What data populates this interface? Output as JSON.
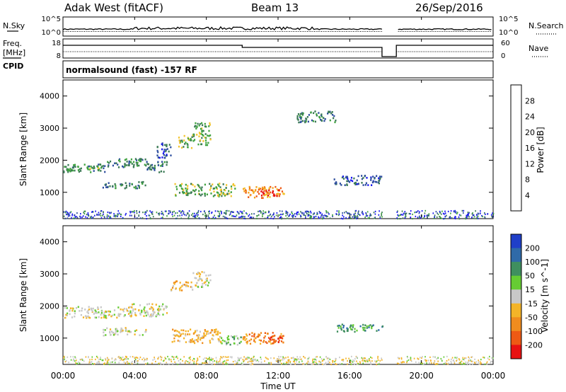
{
  "header": {
    "title": "Adak West (fitACF)",
    "beam": "Beam 13",
    "date": "26/Sep/2016"
  },
  "noise_panel": {
    "left_label": "N.Sky",
    "right_label": "N.Search",
    "left_ticks": [
      "10^5",
      "10^0"
    ],
    "right_ticks": [
      "10^5",
      "10^0"
    ]
  },
  "freq_panel": {
    "left_label_1": "Freq.",
    "left_label_2": "[MHz]",
    "cpid_label": "CPID",
    "right_label": "Nave",
    "left_ticks": [
      "18",
      "8"
    ],
    "right_ticks": [
      "60",
      "0"
    ]
  },
  "cpid_text": "normalsound (fast) -157 RF",
  "axes": {
    "ylabel": "Slant Range [km]",
    "xlabel": "Time UT",
    "y_ticks": [
      "1000",
      "2000",
      "3000",
      "4000"
    ],
    "x_ticks": [
      "00:00",
      "04:00",
      "08:00",
      "12:00",
      "16:00",
      "20:00",
      "00:00"
    ]
  },
  "power_colorbar": {
    "label": "Power [dB]",
    "ticks": [
      "4",
      "8",
      "12",
      "16",
      "20",
      "24",
      "28"
    ],
    "colors": [
      "#1a1aee",
      "#2f4f9f",
      "#3b7a55",
      "#3fa33f",
      "#f2c42e",
      "#f4a21e",
      "#ee5a14",
      "#e81212"
    ]
  },
  "velocity_colorbar": {
    "label": "Velocity [m s^-1]",
    "ticks": [
      "200",
      "100",
      "50",
      "15",
      "-15",
      "-50",
      "-100",
      "-200"
    ],
    "colors": [
      "#1f3fc8",
      "#2f6aa8",
      "#3f8f5f",
      "#66cc33",
      "#c8c8c8",
      "#f4b428",
      "#f08c1e",
      "#ee5a14",
      "#e81212"
    ]
  },
  "chart_data": {
    "type": "heatmap",
    "x_range_hours": [
      0,
      24
    ],
    "y_range_km": [
      180,
      4500
    ],
    "data_gap_hours": [
      17.8,
      18.6
    ],
    "power_scatter": [
      {
        "t0": 0.0,
        "t1": 2.4,
        "r0": 1650,
        "r1": 1900,
        "level": 2
      },
      {
        "t0": 0.2,
        "t1": 2.0,
        "r0": 1700,
        "r1": 1800,
        "level": 3
      },
      {
        "t0": 2.4,
        "t1": 4.6,
        "r0": 1800,
        "r1": 2100,
        "level": 2
      },
      {
        "t0": 2.2,
        "t1": 4.6,
        "r0": 1150,
        "r1": 1350,
        "level": 2
      },
      {
        "t0": 4.6,
        "t1": 5.8,
        "r0": 1650,
        "r1": 2000,
        "level": 2
      },
      {
        "t0": 5.2,
        "t1": 6.0,
        "r0": 2100,
        "r1": 2600,
        "level": 1
      },
      {
        "t0": 6.4,
        "t1": 7.2,
        "r0": 2400,
        "r1": 2800,
        "level": 3
      },
      {
        "t0": 7.2,
        "t1": 8.2,
        "r0": 2500,
        "r1": 3200,
        "level": 3
      },
      {
        "t0": 6.2,
        "t1": 9.6,
        "r0": 900,
        "r1": 1300,
        "level": 3
      },
      {
        "t0": 10.0,
        "t1": 12.4,
        "r0": 850,
        "r1": 1200,
        "level": 5
      },
      {
        "t0": 11.0,
        "t1": 12.0,
        "r0": 900,
        "r1": 1100,
        "level": 7
      },
      {
        "t0": 15.0,
        "t1": 17.8,
        "r0": 1250,
        "r1": 1550,
        "level": 1
      },
      {
        "t0": 13.0,
        "t1": 15.2,
        "r0": 3200,
        "r1": 3550,
        "level": 2
      }
    ],
    "velocity_scatter": [
      {
        "t0": 0.0,
        "t1": 3.8,
        "r0": 1650,
        "r1": 2000,
        "level": 4
      },
      {
        "t0": 3.8,
        "t1": 5.8,
        "r0": 1700,
        "r1": 2100,
        "level": 4
      },
      {
        "t0": 2.2,
        "t1": 4.6,
        "r0": 1100,
        "r1": 1350,
        "level": 4
      },
      {
        "t0": 6.0,
        "t1": 7.2,
        "r0": 2500,
        "r1": 2800,
        "level": 5
      },
      {
        "t0": 7.2,
        "t1": 8.2,
        "r0": 2600,
        "r1": 3100,
        "level": 4
      },
      {
        "t0": 6.0,
        "t1": 8.8,
        "r0": 850,
        "r1": 1300,
        "level": 5
      },
      {
        "t0": 10.0,
        "t1": 12.4,
        "r0": 850,
        "r1": 1200,
        "level": 6
      },
      {
        "t0": 11.4,
        "t1": 12.2,
        "r0": 900,
        "r1": 1100,
        "level": 8
      },
      {
        "t0": 15.2,
        "t1": 17.8,
        "r0": 1200,
        "r1": 1450,
        "level": 2
      },
      {
        "t0": 8.8,
        "t1": 10.0,
        "r0": 800,
        "r1": 1100,
        "level": 3
      }
    ]
  }
}
